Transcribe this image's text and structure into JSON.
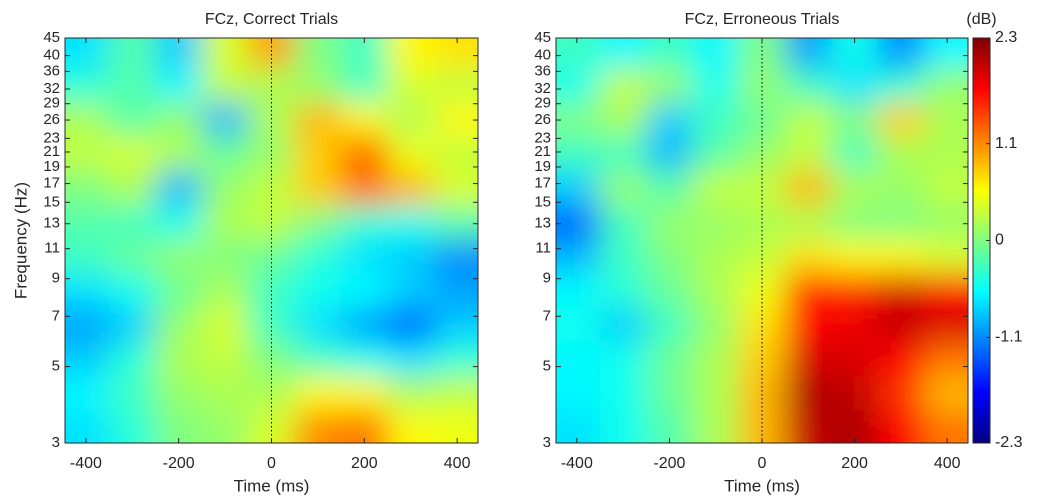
{
  "chart_data": [
    {
      "type": "heatmap",
      "title": "FCz, Correct Trials",
      "xlabel": "Time (ms)",
      "ylabel": "Frequency (Hz)",
      "xlim": [
        -445,
        445
      ],
      "ylim": [
        3,
        45
      ],
      "yscale": "log",
      "xticks": [
        -400,
        -200,
        0,
        200,
        400
      ],
      "yticks": [
        3,
        5,
        7,
        9,
        11,
        13,
        15,
        17,
        19,
        21,
        23,
        26,
        29,
        32,
        36,
        40,
        45
      ],
      "vline": 0,
      "colormap": "jet",
      "clim": [
        -2.3,
        2.3
      ],
      "x": [
        -400,
        -300,
        -200,
        -100,
        0,
        100,
        200,
        300,
        400
      ],
      "y": [
        3.3,
        4.2,
        5.3,
        6.6,
        8.3,
        10.5,
        13,
        16.5,
        21,
        26,
        33,
        41
      ],
      "z": [
        [
          -0.7,
          -0.4,
          0,
          0.1,
          0.4,
          1.1,
          1.2,
          0.6,
          0.5
        ],
        [
          -0.6,
          -0.3,
          0.1,
          0.2,
          0.2,
          0.6,
          0.6,
          0.2,
          0.3
        ],
        [
          -0.8,
          -0.4,
          0.2,
          0.3,
          0,
          -0.3,
          -0.5,
          -0.7,
          -0.4
        ],
        [
          -1.0,
          -0.8,
          0.1,
          0.4,
          -0.3,
          -0.7,
          -1.0,
          -1.3,
          -0.8
        ],
        [
          -0.7,
          -0.5,
          -0.1,
          0.2,
          -0.3,
          -0.5,
          -0.6,
          -0.8,
          -1.0
        ],
        [
          -0.3,
          -0.1,
          0.1,
          0,
          -0.1,
          -0.4,
          -0.7,
          -0.8,
          -1.1
        ],
        [
          -0.2,
          -0.3,
          -0.5,
          0.2,
          0.3,
          0,
          -0.4,
          -0.5,
          -0.2
        ],
        [
          0,
          0.2,
          -0.9,
          0.1,
          0.3,
          0.8,
          1.2,
          0.9,
          0.4
        ],
        [
          0.3,
          0.4,
          0.2,
          -0.1,
          0.1,
          0.8,
          1.3,
          0.5,
          0.3
        ],
        [
          0.2,
          -0.2,
          0.1,
          -0.9,
          0.2,
          0.9,
          0.6,
          0.2,
          0.6
        ],
        [
          -0.4,
          -0.2,
          -0.6,
          0.3,
          0.2,
          0.1,
          -0.3,
          0.4,
          0.3
        ],
        [
          -0.7,
          -0.2,
          -0.8,
          0.4,
          1.0,
          0,
          -0.3,
          0.6,
          0.7
        ]
      ]
    },
    {
      "type": "heatmap",
      "title": "FCz, Erroneous Trials",
      "xlabel": "Time (ms)",
      "xlim": [
        -445,
        445
      ],
      "ylim": [
        3,
        45
      ],
      "yscale": "log",
      "xticks": [
        -400,
        -200,
        0,
        200,
        400
      ],
      "yticks": [
        3,
        5,
        7,
        9,
        11,
        13,
        15,
        17,
        19,
        21,
        23,
        26,
        29,
        32,
        36,
        40,
        45
      ],
      "vline": 0,
      "colormap": "jet",
      "clim": [
        -2.3,
        2.3
      ],
      "colorbar": {
        "label": "(dB)",
        "ticks": [
          2.3,
          1.1,
          0,
          -1.1,
          -2.3
        ]
      },
      "x": [
        -400,
        -300,
        -200,
        -100,
        0,
        100,
        200,
        300,
        400
      ],
      "y": [
        3.3,
        4.2,
        5.3,
        6.6,
        8.3,
        10.5,
        13,
        16.5,
        21,
        26,
        33,
        41
      ],
      "z": [
        [
          -0.7,
          -0.5,
          -0.2,
          0.2,
          0.9,
          2.0,
          2.1,
          1.7,
          1.2
        ],
        [
          -0.6,
          -0.5,
          -0.1,
          0.2,
          0.9,
          2.1,
          2.0,
          1.5,
          0.9
        ],
        [
          -0.6,
          -0.5,
          -0.1,
          0.2,
          0.8,
          1.9,
          1.9,
          1.7,
          1.2
        ],
        [
          -0.5,
          -0.8,
          -0.3,
          0.1,
          0.7,
          1.7,
          1.8,
          2.0,
          1.9
        ],
        [
          -0.6,
          -0.4,
          -0.1,
          0.2,
          0.5,
          1.6,
          1.6,
          1.9,
          1.7
        ],
        [
          -0.9,
          -0.3,
          0,
          0.2,
          0.3,
          0.7,
          0.6,
          0.6,
          0.4
        ],
        [
          -1.3,
          -0.3,
          0.1,
          0.1,
          0.2,
          0.2,
          0,
          0,
          0.1
        ],
        [
          -0.8,
          0.1,
          -0.2,
          0.3,
          0.3,
          0.9,
          0.2,
          0.1,
          0.3
        ],
        [
          -0.3,
          -0.3,
          -0.9,
          -0.2,
          0.1,
          0.3,
          -0.3,
          0.2,
          0.2
        ],
        [
          0,
          0.2,
          -0.8,
          -0.3,
          -0.1,
          0.3,
          0,
          0.8,
          0.2
        ],
        [
          -0.5,
          0.3,
          0.1,
          -0.5,
          0.1,
          -0.3,
          -0.7,
          -0.4,
          0.1
        ],
        [
          -0.3,
          -0.6,
          -0.3,
          -0.6,
          0,
          -1.0,
          -0.5,
          -1.1,
          -0.6
        ]
      ]
    }
  ]
}
